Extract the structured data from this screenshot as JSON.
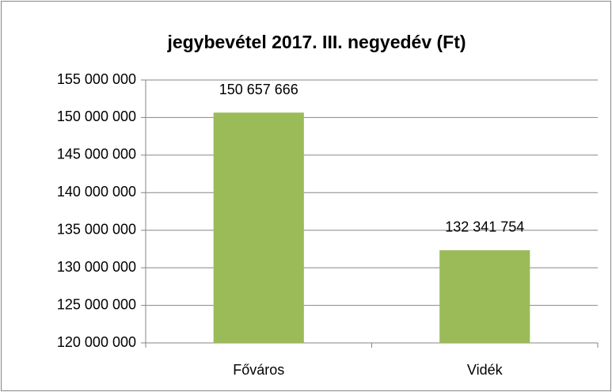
{
  "chart_data": {
    "type": "bar",
    "title": "jegybevétel 2017. III. negyedév (Ft)",
    "categories": [
      "Főváros",
      "Vidék"
    ],
    "values": [
      150657666,
      132341754
    ],
    "value_labels": [
      "150 657 666",
      "132 341 754"
    ],
    "color": "#9bbb59",
    "ylim": [
      120000000,
      155000000
    ],
    "yticks": [
      {
        "value": 120000000,
        "label": "120 000 000"
      },
      {
        "value": 125000000,
        "label": "125 000 000"
      },
      {
        "value": 130000000,
        "label": "130 000 000"
      },
      {
        "value": 135000000,
        "label": "135 000 000"
      },
      {
        "value": 140000000,
        "label": "140 000 000"
      },
      {
        "value": 145000000,
        "label": "145 000 000"
      },
      {
        "value": 150000000,
        "label": "150 000 000"
      },
      {
        "value": 155000000,
        "label": "155 000 000"
      }
    ],
    "grid": true
  }
}
